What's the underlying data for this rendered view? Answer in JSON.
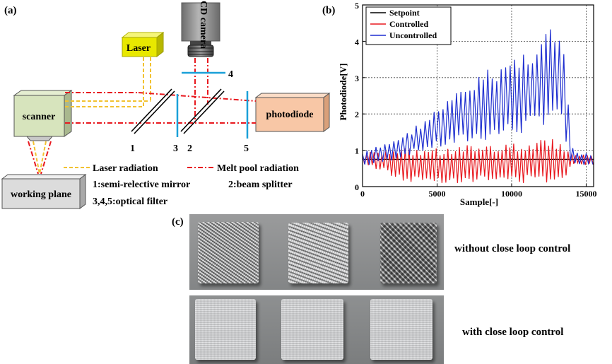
{
  "panel_labels": {
    "a": "(a)",
    "b": "(b)",
    "c": "(c)"
  },
  "setup": {
    "ccd_camera": "CCD camera",
    "laser": "Laser",
    "scanner": "scanner",
    "photodiode": "photodiode",
    "working_plane": "working plane",
    "component_numbers": [
      "1",
      "3",
      "2",
      "5",
      "4"
    ],
    "legend": {
      "laser_radiation": "Laser radiation",
      "melt_pool_radiation": "Melt pool radiation",
      "item1": "1:semi-relective mirror",
      "item2": "2:beam splitter",
      "item345": "3,4,5:optical filter"
    },
    "colors": {
      "laser_beam": "#f2c230",
      "melt_pool_beam": "#e8191f",
      "filter": "#1aa0d8",
      "laser_box": "#e8e800",
      "scanner_box": "#d7e4bd",
      "photodiode_box": "#f8c7a6",
      "working_plane_box": "#dcdcdc",
      "camera_body": "#8c8c8c"
    }
  },
  "chart_data": {
    "type": "line",
    "xlabel": "Sample[-]",
    "ylabel": "Photodiode[V]",
    "xlim": [
      0,
      15500
    ],
    "ylim": [
      0,
      5
    ],
    "xticks": [
      0,
      5000,
      10000,
      15000
    ],
    "yticks": [
      0,
      1,
      2,
      3,
      4,
      5
    ],
    "grid": true,
    "legend_position": "top-left",
    "series": [
      {
        "name": "Setpoint",
        "color": "#000000",
        "x": [
          0,
          15500
        ],
        "y": [
          0.75,
          0.75
        ]
      },
      {
        "name": "Controlled",
        "color": "#e8191f",
        "x": [
          0,
          1500,
          2500,
          3500,
          5000,
          6500,
          8000,
          9500,
          11000,
          12000,
          13000,
          13500,
          14000,
          14500,
          15500
        ],
        "upper": [
          0.95,
          1.0,
          1.05,
          1.1,
          1.1,
          1.15,
          1.2,
          1.2,
          1.25,
          1.3,
          1.35,
          1.2,
          1.0,
          0.9,
          0.85
        ],
        "lower": [
          0.6,
          0.4,
          0.15,
          0.1,
          0.1,
          0.1,
          0.1,
          0.1,
          0.1,
          0.1,
          0.1,
          0.2,
          0.55,
          0.6,
          0.6
        ]
      },
      {
        "name": "Uncontrolled",
        "color": "#1f2fd0",
        "x": [
          0,
          1500,
          3000,
          4500,
          6000,
          7500,
          9000,
          10500,
          11500,
          12200,
          12800,
          13300,
          13700,
          14000,
          14500,
          15500
        ],
        "upper": [
          0.95,
          1.2,
          1.5,
          2.0,
          2.5,
          3.0,
          3.4,
          3.7,
          4.0,
          4.4,
          4.5,
          4.1,
          3.2,
          1.1,
          0.95,
          0.9
        ],
        "lower": [
          0.55,
          0.65,
          0.85,
          1.0,
          1.1,
          1.2,
          1.3,
          1.4,
          1.5,
          1.7,
          1.9,
          1.6,
          1.0,
          0.55,
          0.55,
          0.6
        ]
      }
    ]
  },
  "photos": {
    "without_caption": "without close loop control",
    "with_caption": "with close loop control"
  }
}
